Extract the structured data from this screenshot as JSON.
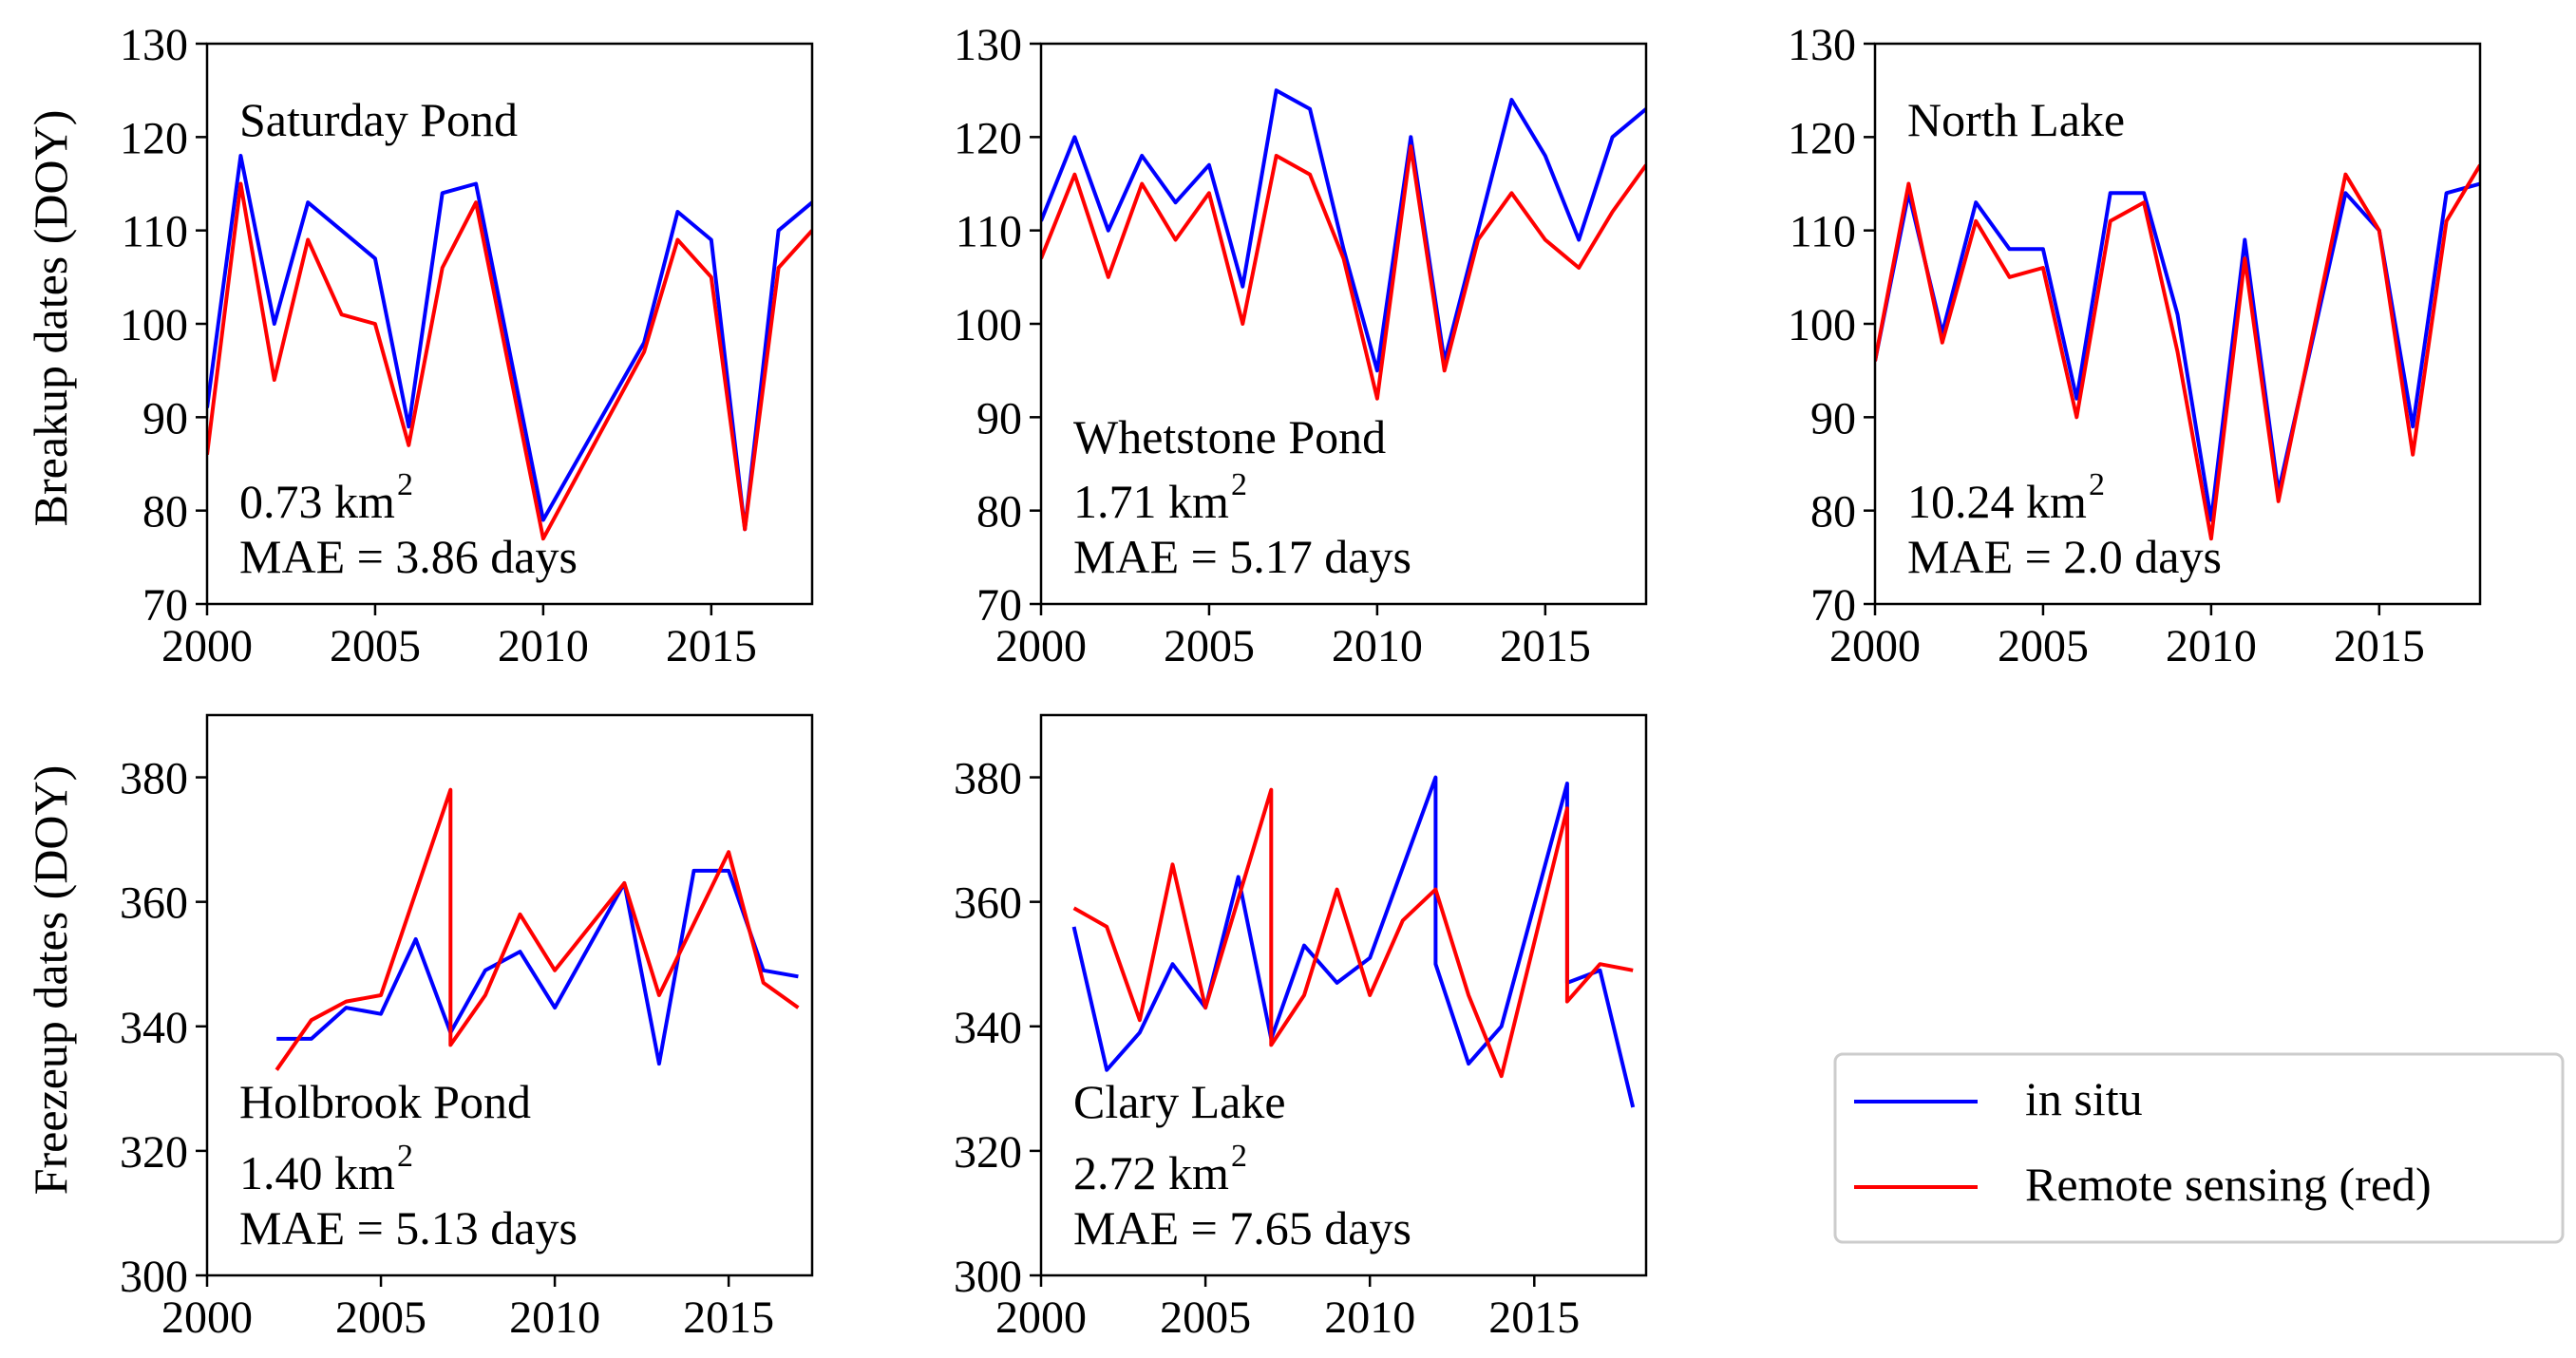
{
  "figure": {
    "ylabel_top": "Breakup dates (DOY)",
    "ylabel_bottom": "Freezeup dates (DOY)"
  },
  "legend": {
    "entries": [
      {
        "label": "in situ",
        "color": "#0000ff"
      },
      {
        "label": "Remote sensing (red)",
        "color": "#ff0000"
      }
    ]
  },
  "chart_data": [
    {
      "type": "line",
      "title": "Saturday Pond",
      "area": "0.73 km",
      "area_sup": "2",
      "mae": "MAE = 3.86 days",
      "xlim": [
        2000,
        2018
      ],
      "ylim": [
        70,
        130
      ],
      "xticks": [
        2000,
        2005,
        2010,
        2015
      ],
      "yticks": [
        70,
        80,
        90,
        100,
        110,
        120,
        130
      ],
      "series": [
        {
          "name": "in situ",
          "color": "#0000ff",
          "x": [
            2000,
            2001,
            2002,
            2003,
            2004,
            2005,
            2006,
            2007,
            2008,
            2010,
            2013,
            2014,
            2015,
            2016,
            2017,
            2018
          ],
          "y": [
            91,
            118,
            100,
            113,
            110,
            107,
            89,
            114,
            115,
            79,
            98,
            112,
            109,
            78,
            110,
            113
          ]
        },
        {
          "name": "Remote sensing (red)",
          "color": "#ff0000",
          "x": [
            2000,
            2001,
            2002,
            2003,
            2004,
            2005,
            2006,
            2007,
            2008,
            2010,
            2013,
            2014,
            2015,
            2016,
            2017,
            2018
          ],
          "y": [
            86,
            115,
            94,
            109,
            101,
            100,
            87,
            106,
            113,
            77,
            97,
            109,
            105,
            78,
            106,
            110
          ]
        }
      ]
    },
    {
      "type": "line",
      "title": "Whetstone Pond",
      "area": "1.71 km",
      "area_sup": "2",
      "mae": "MAE = 5.17 days",
      "xlim": [
        2000,
        2018
      ],
      "ylim": [
        70,
        130
      ],
      "xticks": [
        2000,
        2005,
        2010,
        2015
      ],
      "yticks": [
        70,
        80,
        90,
        100,
        110,
        120,
        130
      ],
      "series": [
        {
          "name": "in situ",
          "color": "#0000ff",
          "x": [
            2000,
            2001,
            2002,
            2003,
            2004,
            2005,
            2006,
            2007,
            2008,
            2009,
            2010,
            2011,
            2012,
            2013,
            2014,
            2015,
            2016,
            2017,
            2018
          ],
          "y": [
            111,
            120,
            110,
            118,
            113,
            117,
            104,
            125,
            123,
            108,
            95,
            120,
            96,
            110,
            124,
            118,
            109,
            120,
            123
          ]
        },
        {
          "name": "Remote sensing (red)",
          "color": "#ff0000",
          "x": [
            2000,
            2001,
            2002,
            2003,
            2004,
            2005,
            2006,
            2007,
            2008,
            2009,
            2010,
            2011,
            2012,
            2013,
            2014,
            2015,
            2016,
            2017,
            2018
          ],
          "y": [
            107,
            116,
            105,
            115,
            109,
            114,
            100,
            118,
            116,
            107,
            92,
            119,
            95,
            109,
            114,
            109,
            106,
            112,
            117
          ]
        }
      ]
    },
    {
      "type": "line",
      "title": "North Lake",
      "area": "10.24 km",
      "area_sup": "2",
      "mae": "MAE = 2.0 days",
      "xlim": [
        2000,
        2018
      ],
      "ylim": [
        70,
        130
      ],
      "xticks": [
        2000,
        2005,
        2010,
        2015
      ],
      "yticks": [
        70,
        80,
        90,
        100,
        110,
        120,
        130
      ],
      "series": [
        {
          "name": "in situ",
          "color": "#0000ff",
          "x": [
            2000,
            2001,
            2002,
            2003,
            2004,
            2005,
            2006,
            2007,
            2008,
            2009,
            2010,
            2011,
            2012,
            2014,
            2015,
            2016,
            2017,
            2018
          ],
          "y": [
            96,
            114,
            99,
            113,
            108,
            108,
            92,
            114,
            114,
            101,
            79,
            109,
            82,
            114,
            110,
            89,
            114,
            115
          ]
        },
        {
          "name": "Remote sensing (red)",
          "color": "#ff0000",
          "x": [
            2000,
            2001,
            2002,
            2003,
            2004,
            2005,
            2006,
            2007,
            2008,
            2009,
            2010,
            2011,
            2012,
            2014,
            2015,
            2016,
            2017,
            2018
          ],
          "y": [
            96,
            115,
            98,
            111,
            105,
            106,
            90,
            111,
            113,
            97,
            77,
            107,
            81,
            116,
            110,
            86,
            111,
            117
          ]
        }
      ]
    },
    {
      "type": "line",
      "title": "Holbrook Pond",
      "area": "1.40 km",
      "area_sup": "2",
      "mae": "MAE = 5.13 days",
      "xlim": [
        2000,
        2017.4
      ],
      "ylim": [
        300,
        390
      ],
      "xticks": [
        2000,
        2005,
        2010,
        2015
      ],
      "yticks": [
        300,
        320,
        340,
        360,
        380
      ],
      "series": [
        {
          "name": "in situ",
          "color": "#0000ff",
          "x": [
            2002,
            2003,
            2004,
            2005,
            2006,
            2007,
            2008,
            2009,
            2010,
            2012,
            2013,
            2014,
            2015,
            2016,
            2017
          ],
          "y": [
            338,
            338,
            343,
            342,
            354,
            339,
            349,
            352,
            343,
            363,
            334,
            365,
            365,
            349,
            348
          ]
        },
        {
          "name": "Remote sensing (red)",
          "color": "#ff0000",
          "x": [
            2002,
            2003,
            2004,
            2005,
            2007,
            2007,
            2008,
            2009,
            2010,
            2012,
            2013,
            2015,
            2016,
            2017
          ],
          "y": [
            333,
            341,
            344,
            345,
            378,
            337,
            345,
            358,
            349,
            363,
            345,
            368,
            347,
            343
          ]
        }
      ]
    },
    {
      "type": "line",
      "title": "Clary Lake",
      "area": "2.72 km",
      "area_sup": "2",
      "mae": "MAE = 7.65 days",
      "xlim": [
        2000,
        2018.4
      ],
      "ylim": [
        300,
        390
      ],
      "xticks": [
        2000,
        2005,
        2010,
        2015
      ],
      "yticks": [
        300,
        320,
        340,
        360,
        380
      ],
      "series": [
        {
          "name": "in situ",
          "color": "#0000ff",
          "x": [
            2001,
            2002,
            2003,
            2004,
            2005,
            2006,
            2007,
            2008,
            2009,
            2010,
            2012,
            2012,
            2013,
            2014,
            2016,
            2016,
            2017,
            2018
          ],
          "y": [
            356,
            333,
            339,
            350,
            343,
            364,
            338,
            353,
            347,
            351,
            380,
            350,
            334,
            340,
            379,
            347,
            349,
            327
          ]
        },
        {
          "name": "Remote sensing (red)",
          "color": "#ff0000",
          "x": [
            2001,
            2002,
            2003,
            2004,
            2005,
            2007,
            2007,
            2008,
            2009,
            2010,
            2011,
            2012,
            2013,
            2014,
            2016,
            2016,
            2017,
            2018
          ],
          "y": [
            359,
            356,
            341,
            366,
            343,
            378,
            337,
            345,
            362,
            345,
            357,
            362,
            345,
            332,
            375,
            344,
            350,
            349
          ]
        }
      ]
    }
  ]
}
